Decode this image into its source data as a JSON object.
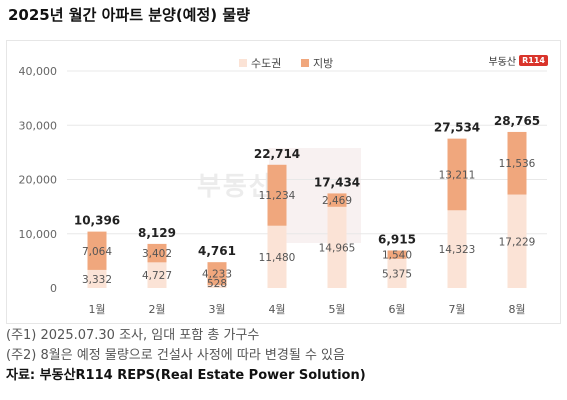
{
  "title": "2025년 월간 아파트 분양(예정) 물량",
  "brand": {
    "name": "부동산",
    "badge": "R114"
  },
  "watermark": "부동산",
  "notes": [
    "(주1) 2025.07.30 조사, 임대 포함 총 가구수",
    "(주2) 8월은 예정 물량으로 건설사 사정에 따라 변경될 수 있음"
  ],
  "source": "자료: 부동산R114 REPS(Real Estate Power Solution)",
  "colors": {
    "capital": "#fbe3d6",
    "local": "#f0a77d",
    "grid": "#e8e8e8"
  },
  "chart_data": {
    "type": "bar",
    "stacked": true,
    "categories": [
      "1월",
      "2월",
      "3월",
      "4월",
      "5월",
      "6월",
      "7월",
      "8월"
    ],
    "series": [
      {
        "name": "수도권",
        "values": [
          3332,
          4727,
          528,
          11480,
          14965,
          5375,
          14323,
          17229
        ]
      },
      {
        "name": "지방",
        "values": [
          7064,
          3402,
          4233,
          11234,
          2469,
          1540,
          13211,
          11536
        ]
      }
    ],
    "totals": [
      10396,
      8129,
      4761,
      22714,
      17434,
      6915,
      27534,
      28765
    ],
    "ylim": [
      0,
      40000
    ],
    "yticks": [
      "0",
      "10,000",
      "20,000",
      "30,000",
      "40,000"
    ],
    "legend_position": "top-center",
    "grid": true
  }
}
